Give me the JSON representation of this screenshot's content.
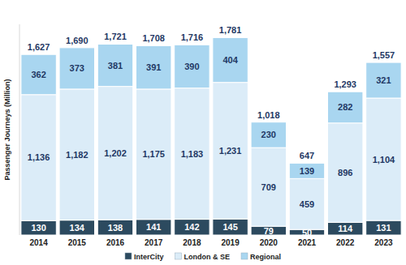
{
  "chart_data": {
    "type": "bar",
    "stacked": true,
    "data_labels": true,
    "tick_labels": "x",
    "legend": "bottom",
    "y_label": "Passenger Journeys (Million)",
    "categories": [
      "2014",
      "2015",
      "2016",
      "2017",
      "2018",
      "2019",
      "2020",
      "2021",
      "2022",
      "2023"
    ],
    "ylim": [
      0,
      1900
    ],
    "series": [
      {
        "name": "InterCity",
        "color": "#2c4a5f",
        "values": [
          130,
          134,
          138,
          141,
          142,
          145,
          79,
          50,
          114,
          131
        ]
      },
      {
        "name": "London & SE",
        "color": "#dbecf8",
        "values": [
          1136,
          1182,
          1202,
          1175,
          1183,
          1231,
          709,
          459,
          896,
          1104
        ],
        "value_labels": [
          "1,136",
          "1,182",
          "1,202",
          "1,175",
          "1,183",
          "1,231",
          "709",
          "459",
          "896",
          "1,104"
        ]
      },
      {
        "name": "Regional",
        "color": "#a9d6f0",
        "values": [
          362,
          373,
          381,
          391,
          390,
          404,
          230,
          139,
          282,
          321
        ]
      }
    ],
    "totals": [
      1627,
      1690,
      1721,
      1708,
      1716,
      1781,
      1018,
      647,
      1293,
      1557
    ],
    "total_labels": [
      "1,627",
      "1,690",
      "1,721",
      "1,708",
      "1,716",
      "1,781",
      "1,018",
      "647",
      "1,293",
      "1,557"
    ]
  }
}
